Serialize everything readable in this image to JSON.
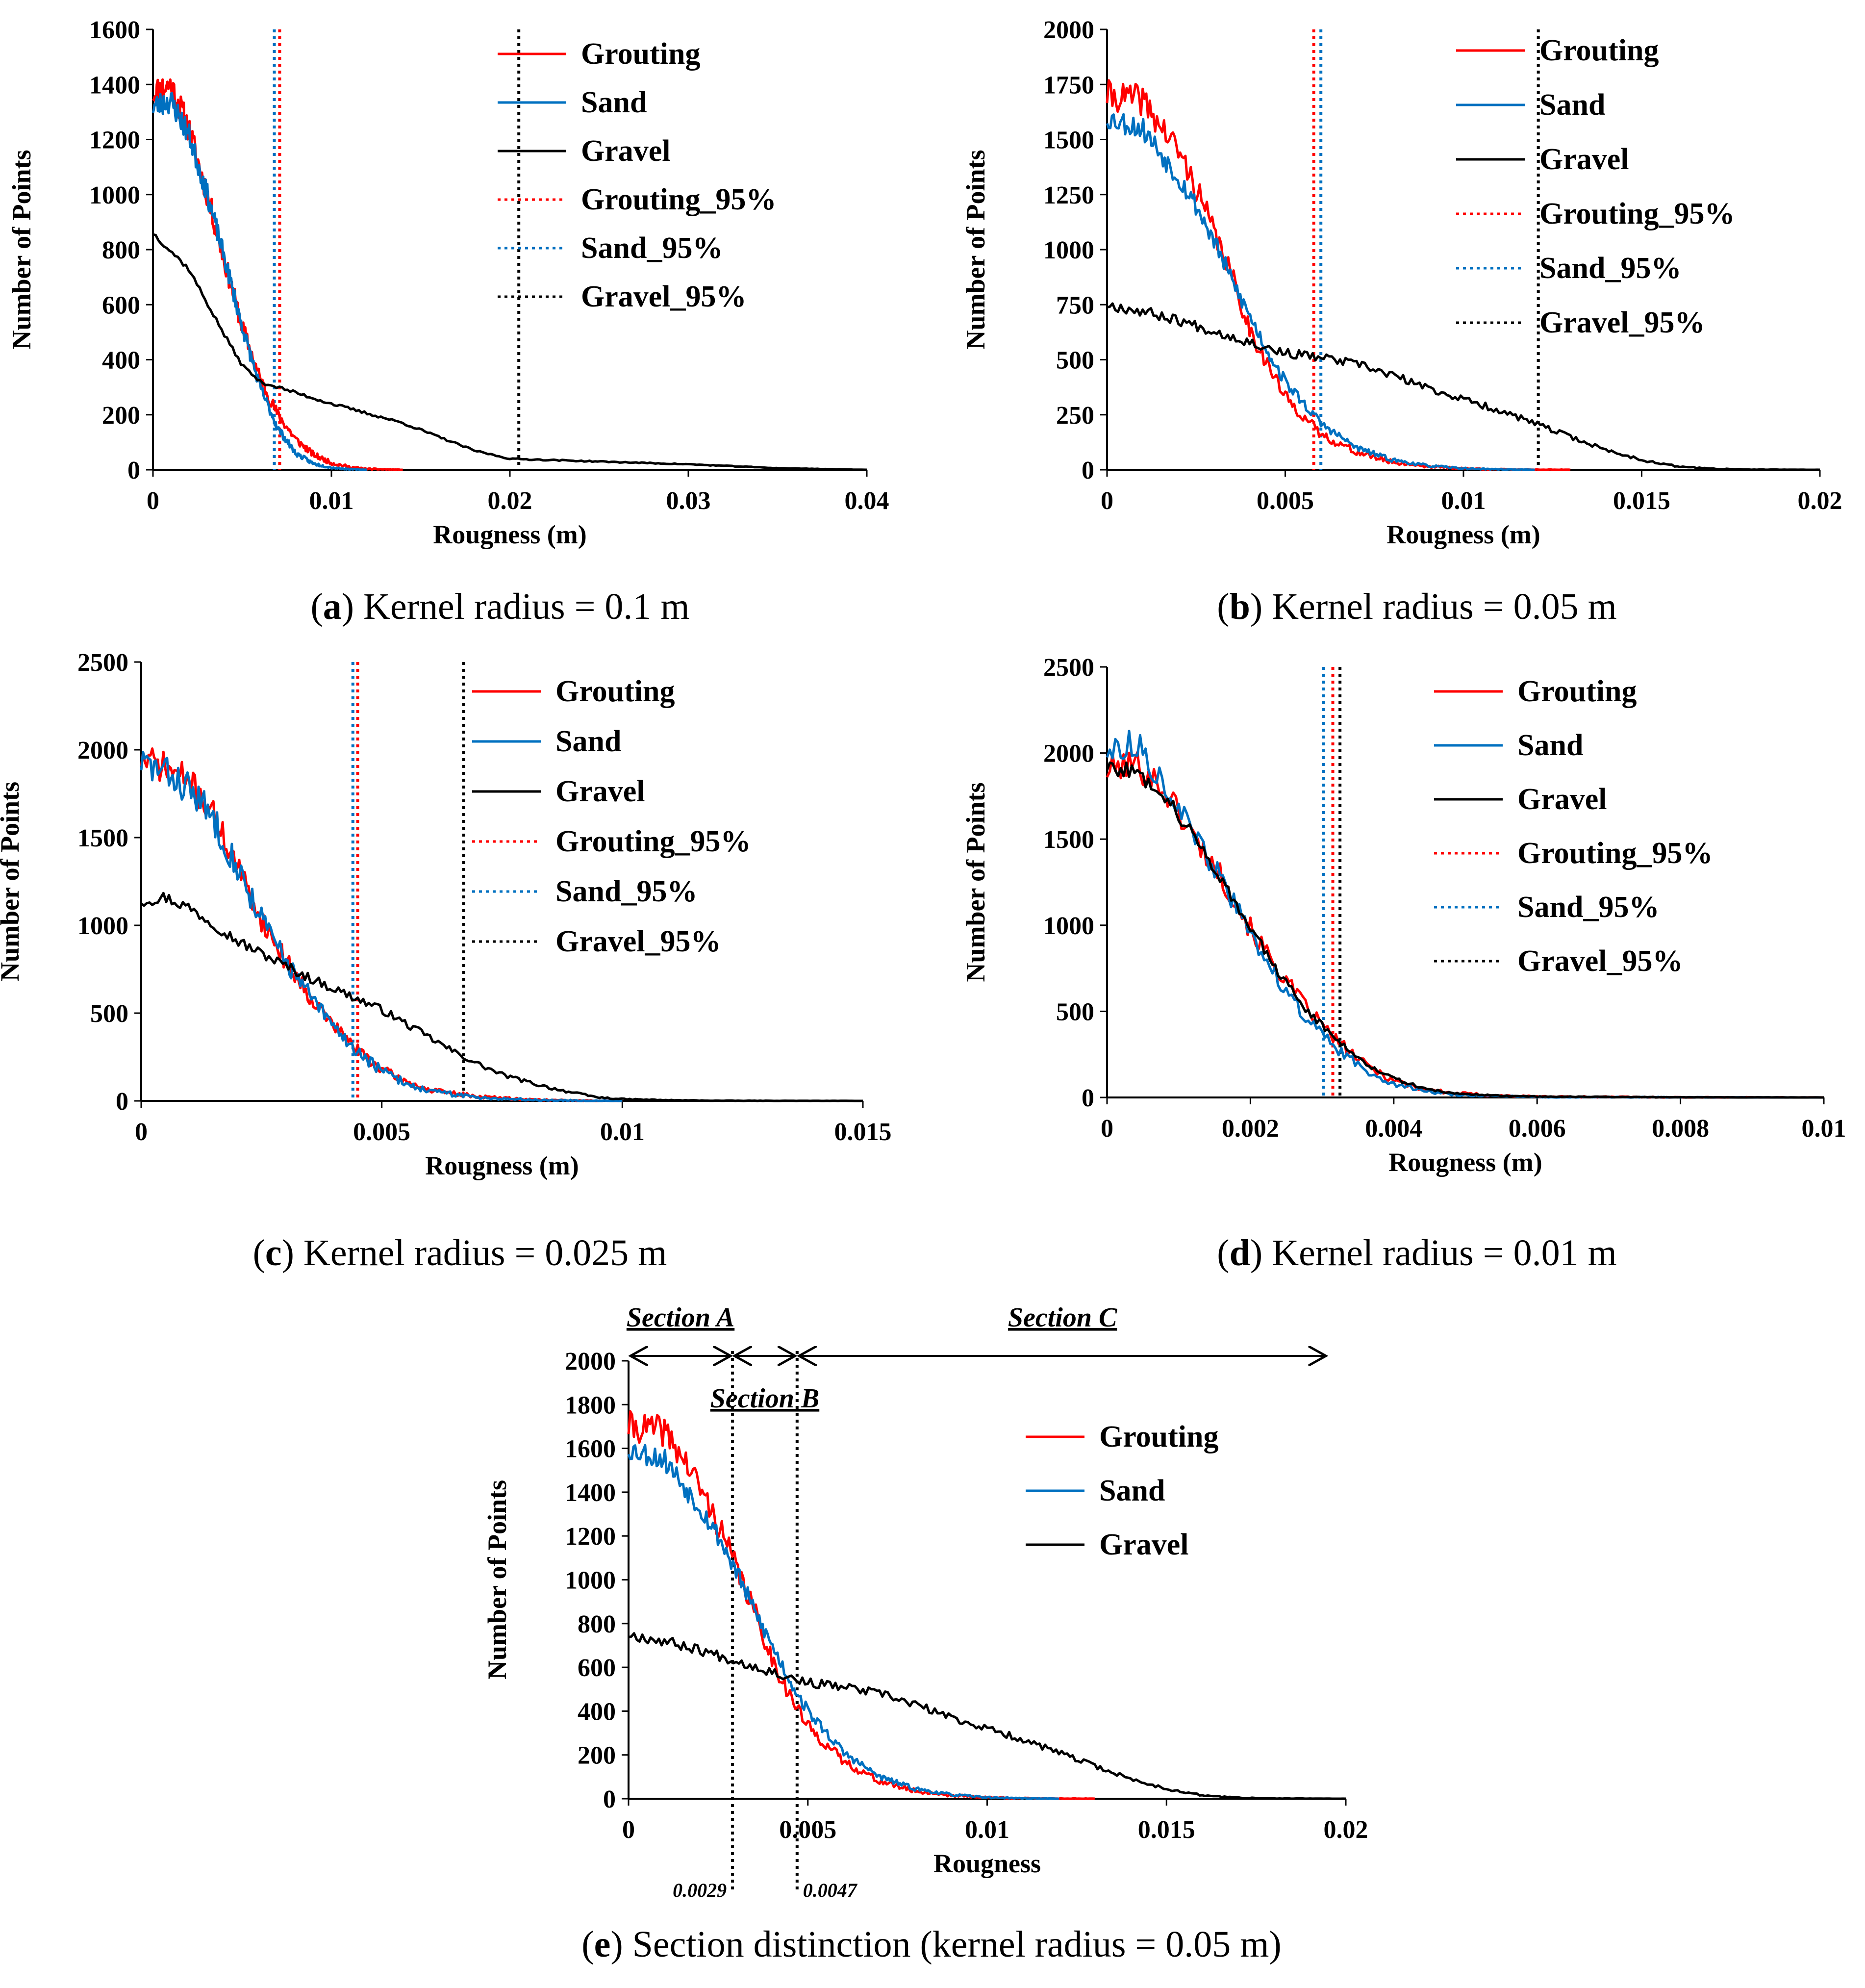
{
  "colors": {
    "grouting": "#ff0000",
    "sand": "#0070c0",
    "gravel": "#000000"
  },
  "chart_data": [
    {
      "id": "a",
      "type": "line",
      "caption": {
        "label": "a",
        "text": "Kernel radius = 0.1 m"
      },
      "xlabel": "Rougness (m)",
      "ylabel": "Number of Points",
      "xlim": [
        0,
        0.04
      ],
      "ylim": [
        0,
        1600
      ],
      "xticks": [
        0,
        0.01,
        0.02,
        0.03,
        0.04
      ],
      "xtick_labels": [
        "0",
        "0.01",
        "0.02",
        "0.03",
        "0.04"
      ],
      "yticks": [
        0,
        200,
        400,
        600,
        800,
        1000,
        1200,
        1400,
        1600
      ],
      "ytick_labels": [
        "0",
        "200",
        "400",
        "600",
        "800",
        "1000",
        "1200",
        "1400",
        "1600"
      ],
      "series": [
        {
          "name": "Grouting",
          "color": "#ff0000",
          "style": "solid",
          "noise": 55,
          "seed": 11,
          "x": [
            0,
            0.001,
            0.002,
            0.003,
            0.004,
            0.005,
            0.006,
            0.007,
            0.008,
            0.009,
            0.01,
            0.011,
            0.012,
            0.014
          ],
          "y": [
            1370,
            1400,
            1240,
            1010,
            760,
            520,
            330,
            200,
            110,
            55,
            25,
            10,
            3,
            0
          ]
        },
        {
          "name": "Sand",
          "color": "#0070c0",
          "style": "solid",
          "noise": 45,
          "seed": 23,
          "x": [
            0,
            0.001,
            0.002,
            0.003,
            0.004,
            0.005,
            0.006,
            0.007,
            0.008,
            0.009,
            0.01,
            0.011,
            0.012
          ],
          "y": [
            1320,
            1340,
            1220,
            1010,
            770,
            520,
            300,
            150,
            60,
            22,
            8,
            2,
            0
          ]
        },
        {
          "name": "Gravel",
          "color": "#000000",
          "style": "solid",
          "noise": 10,
          "seed": 37,
          "x": [
            0,
            0.002,
            0.004,
            0.005,
            0.006,
            0.008,
            0.01,
            0.014,
            0.018,
            0.02,
            0.025,
            0.03,
            0.035,
            0.04
          ],
          "y": [
            860,
            730,
            490,
            380,
            320,
            280,
            240,
            170,
            70,
            40,
            30,
            20,
            6,
            0
          ]
        }
      ],
      "vlines": [
        {
          "name": "Grouting_95%",
          "x": 0.0071,
          "color": "#ff0000",
          "style": "dotted"
        },
        {
          "name": "Sand_95%",
          "x": 0.0068,
          "color": "#0070c0",
          "style": "dotted"
        },
        {
          "name": "Gravel_95%",
          "x": 0.0205,
          "color": "#000000",
          "style": "dotted"
        }
      ],
      "legend": [
        "Grouting",
        "Sand",
        "Gravel",
        "Grouting_95%",
        "Sand_95%",
        "Gravel_95%"
      ]
    },
    {
      "id": "b",
      "type": "line",
      "caption": {
        "label": "b",
        "text": "Kernel radius = 0.05 m"
      },
      "xlabel": "Rougness (m)",
      "ylabel": "Number of Points",
      "xlim": [
        0,
        0.02
      ],
      "ylim": [
        0,
        2000
      ],
      "xticks": [
        0,
        0.005,
        0.01,
        0.015,
        0.02
      ],
      "xtick_labels": [
        "0",
        "0.005",
        "0.01",
        "0.015",
        "0.02"
      ],
      "yticks": [
        0,
        250,
        500,
        750,
        1000,
        1250,
        1500,
        1750,
        2000
      ],
      "ytick_labels": [
        "0",
        "250",
        "500",
        "750",
        "1000",
        "1250",
        "1500",
        "1750",
        "2000"
      ],
      "series": [
        {
          "name": "Grouting",
          "color": "#ff0000",
          "style": "solid",
          "noise": 70,
          "seed": 41,
          "x": [
            0,
            0.001,
            0.0015,
            0.002,
            0.0025,
            0.003,
            0.0035,
            0.004,
            0.0045,
            0.005,
            0.006,
            0.007,
            0.008,
            0.009,
            0.01,
            0.011,
            0.013
          ],
          "y": [
            1700,
            1680,
            1560,
            1450,
            1280,
            1080,
            880,
            640,
            480,
            330,
            160,
            80,
            35,
            15,
            6,
            2,
            0
          ]
        },
        {
          "name": "Sand",
          "color": "#0070c0",
          "style": "solid",
          "noise": 55,
          "seed": 53,
          "x": [
            0,
            0.001,
            0.0015,
            0.002,
            0.0025,
            0.003,
            0.0035,
            0.004,
            0.0045,
            0.005,
            0.006,
            0.007,
            0.008,
            0.009,
            0.01,
            0.011,
            0.012
          ],
          "y": [
            1600,
            1550,
            1440,
            1330,
            1200,
            1040,
            860,
            700,
            540,
            400,
            210,
            100,
            45,
            18,
            6,
            2,
            0
          ]
        },
        {
          "name": "Gravel",
          "color": "#000000",
          "style": "solid",
          "noise": 25,
          "seed": 67,
          "x": [
            0,
            0.001,
            0.002,
            0.003,
            0.004,
            0.005,
            0.006,
            0.007,
            0.008,
            0.009,
            0.01,
            0.011,
            0.012,
            0.013,
            0.014,
            0.015,
            0.016,
            0.017,
            0.018,
            0.02
          ],
          "y": [
            750,
            720,
            680,
            630,
            580,
            530,
            510,
            480,
            430,
            370,
            320,
            270,
            210,
            150,
            90,
            45,
            15,
            5,
            1,
            0
          ]
        }
      ],
      "vlines": [
        {
          "name": "Grouting_95%",
          "x": 0.0058,
          "color": "#ff0000",
          "style": "dotted"
        },
        {
          "name": "Sand_95%",
          "x": 0.006,
          "color": "#0070c0",
          "style": "dotted"
        },
        {
          "name": "Gravel_95%",
          "x": 0.0121,
          "color": "#000000",
          "style": "dotted"
        }
      ],
      "legend": [
        "Grouting",
        "Sand",
        "Gravel",
        "Grouting_95%",
        "Sand_95%",
        "Gravel_95%"
      ]
    },
    {
      "id": "c",
      "type": "line",
      "caption": {
        "label": "c",
        "text": "Kernel radius = 0.025 m"
      },
      "xlabel": "Rougness (m)",
      "ylabel": "Number of Points",
      "xlim": [
        0,
        0.015
      ],
      "ylim": [
        0,
        2500
      ],
      "xticks": [
        0,
        0.005,
        0.01,
        0.015
      ],
      "xtick_labels": [
        "0",
        "0.005",
        "0.01",
        "0.015"
      ],
      "yticks": [
        0,
        500,
        1000,
        1500,
        2000,
        2500
      ],
      "ytick_labels": [
        "0",
        "500",
        "1000",
        "1500",
        "2000",
        "2500"
      ],
      "series": [
        {
          "name": "Grouting",
          "color": "#ff0000",
          "style": "solid",
          "noise": 90,
          "seed": 71,
          "x": [
            0,
            0.0005,
            0.001,
            0.0015,
            0.002,
            0.0025,
            0.003,
            0.0035,
            0.004,
            0.0045,
            0.005,
            0.0055,
            0.006,
            0.007,
            0.008,
            0.009,
            0.01
          ],
          "y": [
            1950,
            1900,
            1820,
            1630,
            1330,
            1030,
            800,
            600,
            430,
            290,
            180,
            110,
            60,
            25,
            8,
            2,
            0
          ]
        },
        {
          "name": "Sand",
          "color": "#0070c0",
          "style": "solid",
          "noise": 100,
          "seed": 83,
          "x": [
            0,
            0.0005,
            0.001,
            0.0015,
            0.002,
            0.0025,
            0.003,
            0.0035,
            0.004,
            0.0045,
            0.005,
            0.0055,
            0.006,
            0.007,
            0.008,
            0.009,
            0.01
          ],
          "y": [
            1930,
            1870,
            1780,
            1610,
            1330,
            1040,
            800,
            600,
            420,
            280,
            170,
            100,
            55,
            20,
            7,
            2,
            0
          ]
        },
        {
          "name": "Gravel",
          "color": "#000000",
          "style": "solid",
          "noise": 35,
          "seed": 97,
          "x": [
            0,
            0.0005,
            0.001,
            0.0015,
            0.002,
            0.0025,
            0.003,
            0.0035,
            0.004,
            0.0045,
            0.005,
            0.0055,
            0.006,
            0.0065,
            0.007,
            0.0075,
            0.008,
            0.0085,
            0.009,
            0.0095,
            0.01,
            0.011,
            0.012,
            0.015
          ],
          "y": [
            1140,
            1160,
            1100,
            1010,
            910,
            840,
            770,
            700,
            640,
            580,
            520,
            440,
            360,
            280,
            210,
            150,
            110,
            75,
            45,
            20,
            10,
            4,
            1,
            0
          ]
        }
      ],
      "vlines": [
        {
          "name": "Grouting_95%",
          "x": 0.0045,
          "color": "#ff0000",
          "style": "dotted"
        },
        {
          "name": "Sand_95%",
          "x": 0.0044,
          "color": "#0070c0",
          "style": "dotted"
        },
        {
          "name": "Gravel_95%",
          "x": 0.0067,
          "color": "#000000",
          "style": "dotted"
        }
      ],
      "legend": [
        "Grouting",
        "Sand",
        "Gravel",
        "Grouting_95%",
        "Sand_95%",
        "Gravel_95%"
      ]
    },
    {
      "id": "d",
      "type": "line",
      "caption": {
        "label": "d",
        "text": "Kernel radius = 0.01 m"
      },
      "xlabel": "Rougness (m)",
      "ylabel": "Number of Points",
      "xlim": [
        0,
        0.01
      ],
      "ylim": [
        0,
        2500
      ],
      "xticks": [
        0,
        0.002,
        0.004,
        0.006,
        0.008,
        0.01
      ],
      "xtick_labels": [
        "0",
        "0.002",
        "0.004",
        "0.006",
        "0.008",
        "0.01"
      ],
      "yticks": [
        0,
        500,
        1000,
        1500,
        2000,
        2500
      ],
      "ytick_labels": [
        "0",
        "500",
        "1000",
        "1500",
        "2000",
        "2500"
      ],
      "series": [
        {
          "name": "Grouting",
          "color": "#ff0000",
          "style": "solid",
          "noise": 90,
          "seed": 101,
          "x": [
            0,
            0.0004,
            0.0008,
            0.0012,
            0.0016,
            0.002,
            0.0024,
            0.0028,
            0.0032,
            0.0036,
            0.004,
            0.0044,
            0.0048,
            0.0055,
            0.006,
            0.008,
            0.01
          ],
          "y": [
            1900,
            1940,
            1790,
            1520,
            1280,
            980,
            730,
            510,
            330,
            190,
            100,
            50,
            25,
            10,
            5,
            1,
            0
          ]
        },
        {
          "name": "Sand",
          "color": "#0070c0",
          "style": "solid",
          "noise": 80,
          "seed": 113,
          "x": [
            0,
            0.0004,
            0.0008,
            0.0012,
            0.0016,
            0.002,
            0.0024,
            0.0028,
            0.0032,
            0.0036,
            0.004,
            0.0044,
            0.0048,
            0.0055,
            0.006,
            0.008,
            0.01
          ],
          "y": [
            2010,
            2060,
            1820,
            1530,
            1260,
            950,
            680,
            450,
            280,
            160,
            80,
            40,
            18,
            7,
            3,
            1,
            0
          ]
        },
        {
          "name": "Gravel",
          "color": "#000000",
          "style": "solid",
          "noise": 45,
          "seed": 127,
          "x": [
            0,
            0.0004,
            0.0008,
            0.0012,
            0.0016,
            0.002,
            0.0024,
            0.0028,
            0.0032,
            0.0036,
            0.004,
            0.0044,
            0.0048,
            0.0055,
            0.006,
            0.008,
            0.01
          ],
          "y": [
            1920,
            1890,
            1760,
            1520,
            1270,
            980,
            720,
            500,
            340,
            200,
            110,
            55,
            25,
            10,
            5,
            1,
            0
          ]
        }
      ],
      "vlines": [
        {
          "name": "Grouting_95%",
          "x": 0.00315,
          "color": "#ff0000",
          "style": "dotted"
        },
        {
          "name": "Sand_95%",
          "x": 0.00302,
          "color": "#0070c0",
          "style": "dotted"
        },
        {
          "name": "Gravel_95%",
          "x": 0.00325,
          "color": "#000000",
          "style": "dotted"
        }
      ],
      "legend": [
        "Grouting",
        "Sand",
        "Gravel",
        "Grouting_95%",
        "Sand_95%",
        "Gravel_95%"
      ]
    },
    {
      "id": "e",
      "type": "line",
      "caption": {
        "label": "e",
        "text": "Section distinction (kernel radius = 0.05 m)"
      },
      "xlabel": "Rougness",
      "ylabel": "Number of Points",
      "xlim": [
        0,
        0.02
      ],
      "ylim": [
        0,
        2000
      ],
      "xticks": [
        0,
        0.005,
        0.01,
        0.015,
        0.02
      ],
      "xtick_labels": [
        "0",
        "0.005",
        "0.01",
        "0.015",
        "0.02"
      ],
      "yticks": [
        0,
        200,
        400,
        600,
        800,
        1000,
        1200,
        1400,
        1600,
        1800,
        2000
      ],
      "ytick_labels": [
        "0",
        "200",
        "400",
        "600",
        "800",
        "1000",
        "1200",
        "1400",
        "1600",
        "1800",
        "2000"
      ],
      "series": [
        {
          "name": "Grouting",
          "color": "#ff0000",
          "style": "solid",
          "noise": 70,
          "seed": 41,
          "x": [
            0,
            0.001,
            0.0015,
            0.002,
            0.0025,
            0.003,
            0.0035,
            0.004,
            0.0045,
            0.005,
            0.006,
            0.007,
            0.008,
            0.009,
            0.01,
            0.011,
            0.013
          ],
          "y": [
            1700,
            1680,
            1560,
            1420,
            1250,
            1060,
            860,
            640,
            470,
            330,
            170,
            80,
            35,
            15,
            6,
            2,
            0
          ]
        },
        {
          "name": "Sand",
          "color": "#0070c0",
          "style": "solid",
          "noise": 55,
          "seed": 53,
          "x": [
            0,
            0.001,
            0.0015,
            0.002,
            0.0025,
            0.003,
            0.0035,
            0.004,
            0.0045,
            0.005,
            0.006,
            0.007,
            0.008,
            0.009,
            0.01,
            0.011,
            0.012
          ],
          "y": [
            1600,
            1550,
            1440,
            1330,
            1200,
            1040,
            860,
            700,
            540,
            400,
            210,
            100,
            45,
            18,
            6,
            2,
            0
          ]
        },
        {
          "name": "Gravel",
          "color": "#000000",
          "style": "solid",
          "noise": 25,
          "seed": 67,
          "x": [
            0,
            0.001,
            0.002,
            0.003,
            0.004,
            0.005,
            0.006,
            0.007,
            0.008,
            0.009,
            0.01,
            0.011,
            0.012,
            0.013,
            0.014,
            0.015,
            0.016,
            0.017,
            0.018,
            0.02
          ],
          "y": [
            750,
            720,
            680,
            630,
            580,
            530,
            510,
            480,
            430,
            370,
            320,
            270,
            210,
            150,
            90,
            45,
            15,
            5,
            1,
            0
          ]
        }
      ],
      "vlines": [
        {
          "name": "boundary-A-B",
          "x": 0.0029,
          "color": "#000000",
          "style": "dotted"
        },
        {
          "name": "boundary-B-C",
          "x": 0.0047,
          "color": "#000000",
          "style": "dotted"
        }
      ],
      "boundary_labels": [
        "0.0029",
        "0.0047"
      ],
      "sections": [
        {
          "name": "Section A",
          "from": 0,
          "to": 0.0029
        },
        {
          "name": "Section B",
          "from": 0.0029,
          "to": 0.0047
        },
        {
          "name": "Section C",
          "from": 0.0047,
          "to": 0.0195
        }
      ],
      "legend": [
        "Grouting",
        "Sand",
        "Gravel"
      ]
    }
  ]
}
